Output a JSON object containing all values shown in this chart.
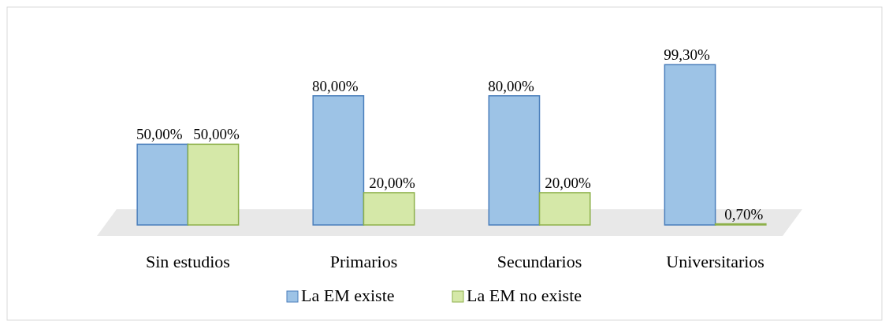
{
  "chart_data": {
    "type": "bar",
    "categories": [
      "Sin estudios",
      "Primarios",
      "Secundarios",
      "Universitarios"
    ],
    "series": [
      {
        "name": "La EM existe",
        "color": "#9dc3e6",
        "values": [
          50,
          80,
          80,
          99.3
        ],
        "value_labels": [
          "50,00%",
          "80,00%",
          "80,00%",
          "99,30%"
        ]
      },
      {
        "name": "La EM no existe",
        "color": "#d5e8a8",
        "values": [
          50,
          20,
          20,
          0.7
        ],
        "value_labels": [
          "50,00%",
          "20,00%",
          "20,00%",
          "0,70%"
        ]
      }
    ],
    "legend": "bottom",
    "grid": false
  }
}
